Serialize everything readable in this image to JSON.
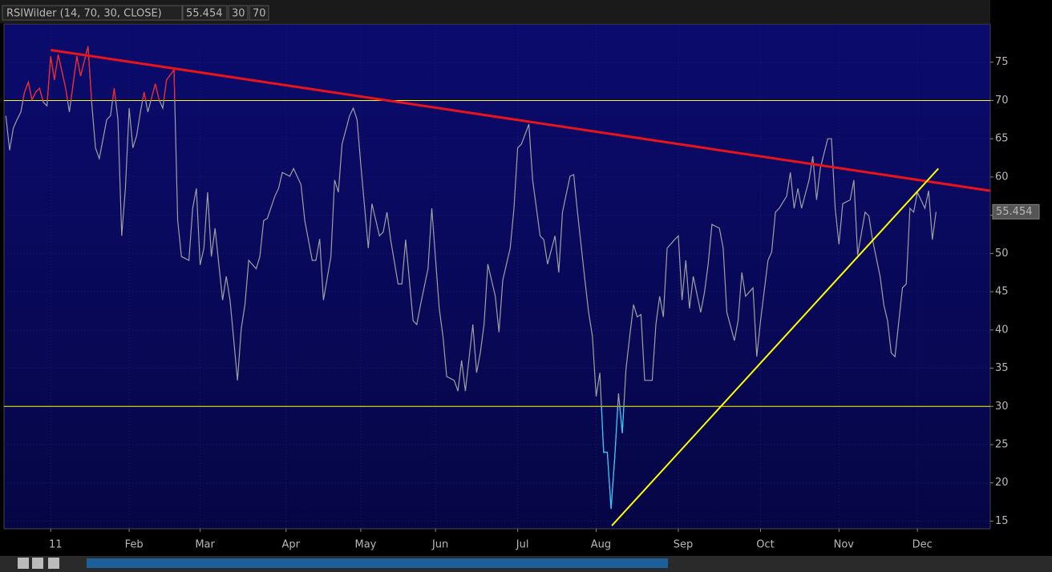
{
  "chart_data": {
    "type": "line",
    "title": "RSIWilder (14, 70, 30, CLOSE)",
    "levels": [
      30,
      70
    ],
    "level_color": "#ffff00",
    "overbought_color": "#ff2020",
    "oversold_color": "#30c8ff",
    "xlim": [
      -12.5,
      251.5
    ],
    "xticks": [
      {
        "value": 0,
        "label": "11"
      },
      {
        "value": 21,
        "label": "Feb"
      },
      {
        "value": 40,
        "label": "Mar"
      },
      {
        "value": 63,
        "label": "Apr"
      },
      {
        "value": 83,
        "label": "May"
      },
      {
        "value": 103,
        "label": "Jun"
      },
      {
        "value": 125,
        "label": "Jul"
      },
      {
        "value": 146,
        "label": "Aug"
      },
      {
        "value": 168,
        "label": "Sep"
      },
      {
        "value": 190,
        "label": "Oct"
      },
      {
        "value": 211,
        "label": "Nov"
      },
      {
        "value": 232,
        "label": "Dec"
      }
    ],
    "ylim": [
      14,
      80
    ],
    "yticks": [
      15,
      20,
      25,
      30,
      35,
      40,
      45,
      50,
      55,
      60,
      65,
      70,
      75
    ],
    "x": [
      -12,
      -11,
      -10,
      -9,
      -8,
      -7,
      -6,
      -5,
      -4,
      -3,
      -2,
      -1,
      0,
      1,
      2,
      4,
      5,
      7,
      8,
      10,
      11,
      12,
      13,
      15,
      16,
      17,
      18,
      19,
      20,
      21,
      22,
      23,
      24,
      25,
      26,
      28,
      29,
      30,
      31,
      33,
      34,
      35,
      37,
      38,
      39,
      40,
      41,
      42,
      43,
      44,
      46,
      47,
      48,
      50,
      51,
      52,
      53,
      55,
      56,
      57,
      58,
      60,
      61,
      62,
      64,
      65,
      67,
      68,
      70,
      71,
      72,
      73,
      75,
      76,
      77,
      78,
      80,
      81,
      82,
      83,
      85,
      86,
      88,
      89,
      90,
      91,
      93,
      94,
      95,
      97,
      98,
      99,
      101,
      102,
      104,
      105,
      106,
      108,
      109,
      110,
      111,
      113,
      114,
      115,
      116,
      117,
      119,
      120,
      121,
      123,
      124,
      125,
      126,
      128,
      129,
      131,
      132,
      133,
      135,
      136,
      137,
      139,
      140,
      141,
      143,
      144,
      145,
      146,
      147,
      148,
      149,
      150,
      151,
      152,
      153,
      154,
      155,
      156,
      157,
      158,
      159,
      161,
      162,
      163,
      164,
      165,
      167,
      168,
      169,
      170,
      171,
      172,
      174,
      175,
      176,
      177,
      179,
      180,
      181,
      183,
      184,
      185,
      186,
      188,
      189,
      190,
      192,
      193,
      194,
      195,
      197,
      198,
      199,
      200,
      201,
      203,
      204,
      205,
      206,
      208,
      209,
      210,
      211,
      212,
      214,
      215,
      216,
      218,
      219,
      220,
      222,
      223,
      224,
      225,
      226,
      228,
      229,
      230,
      231,
      232,
      234,
      235,
      236,
      237
    ],
    "series": [
      {
        "color": "#a0a0a0",
        "values": [
          68.0,
          63.5,
          66.4,
          67.5,
          68.5,
          71.1,
          72.4,
          70.1,
          71.1,
          71.6,
          69.8,
          69.3,
          75.8,
          72.7,
          76.0,
          71.6,
          68.5,
          75.8,
          73.2,
          77.1,
          69.5,
          63.8,
          62.4,
          67.5,
          68.0,
          71.6,
          67.5,
          52.3,
          58.5,
          69.0,
          63.8,
          65.4,
          68.5,
          71.1,
          68.5,
          72.2,
          70.1,
          69.0,
          72.7,
          74.0,
          54.3,
          49.6,
          49.1,
          55.9,
          58.5,
          48.5,
          50.7,
          58.0,
          49.6,
          53.3,
          43.9,
          47.0,
          43.9,
          33.4,
          40.2,
          43.3,
          49.1,
          48.0,
          49.6,
          54.3,
          54.6,
          57.5,
          58.5,
          60.6,
          60.1,
          61.1,
          59.0,
          54.3,
          49.1,
          49.1,
          51.9,
          43.9,
          49.6,
          59.6,
          58.0,
          64.3,
          68.0,
          69.0,
          67.5,
          61.7,
          50.7,
          56.5,
          52.3,
          52.8,
          55.4,
          51.8,
          46.0,
          46.0,
          51.8,
          41.2,
          40.7,
          43.3,
          48.0,
          55.9,
          42.8,
          39.2,
          33.9,
          33.4,
          32.0,
          36.0,
          32.0,
          40.7,
          34.4,
          37.0,
          40.7,
          48.6,
          44.4,
          39.7,
          46.5,
          50.7,
          55.9,
          63.8,
          64.3,
          66.9,
          59.6,
          52.3,
          51.8,
          48.6,
          52.3,
          47.5,
          55.4,
          60.1,
          60.3,
          55.4,
          46.5,
          42.3,
          39.2,
          31.3,
          34.4,
          24.0,
          24.0,
          16.6,
          23.5,
          31.7,
          26.5,
          34.9,
          39.2,
          43.3,
          41.7,
          42.0,
          33.4,
          33.4,
          40.7,
          44.4,
          41.7,
          50.7,
          51.8,
          52.3,
          43.9,
          49.1,
          42.8,
          47.0,
          42.3,
          44.9,
          48.6,
          53.8,
          53.3,
          50.7,
          42.3,
          38.6,
          41.2,
          47.5,
          44.4,
          45.5,
          36.5,
          41.2,
          49.1,
          50.2,
          55.4,
          55.9,
          57.5,
          60.6,
          55.9,
          58.5,
          55.9,
          59.6,
          62.7,
          57.0,
          61.1,
          65.0,
          65.0,
          55.9,
          51.2,
          56.5,
          57.0,
          59.6,
          49.8,
          55.4,
          54.9,
          51.8,
          47.0,
          43.3,
          41.2,
          37.0,
          36.5,
          45.5,
          46.0,
          55.9,
          55.4,
          58.0,
          55.9,
          58.2,
          51.8,
          55.454
        ]
      }
    ],
    "trendlines": [
      {
        "color": "#e8141a",
        "x": [
          0,
          251.5
        ],
        "y": [
          76.6,
          58.2
        ]
      },
      {
        "color": "#ffff00",
        "x": [
          150.2,
          237.6
        ],
        "y": [
          14.4,
          61.1
        ]
      }
    ]
  }
}
